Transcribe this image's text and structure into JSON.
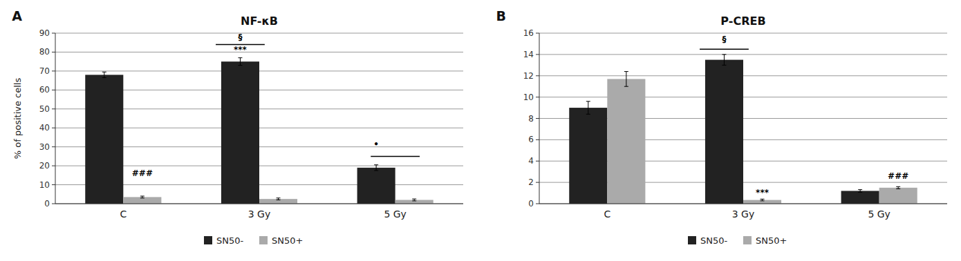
{
  "chart_data": [
    {
      "type": "bar",
      "title": "NF-κB",
      "panel_label": "A",
      "ylabel": "% of positive cells",
      "categories": [
        "C",
        "3 Gy",
        "5 Gy"
      ],
      "series": [
        {
          "name": "SN50-",
          "color": "#222222",
          "values": [
            68,
            75,
            19
          ],
          "errors": [
            1.5,
            2.0,
            1.5
          ]
        },
        {
          "name": "SN50+",
          "color": "#aaaaaa",
          "values": [
            3.5,
            2.5,
            2.0
          ],
          "errors": [
            0.5,
            0.5,
            0.5
          ]
        }
      ],
      "ylim": [
        0,
        90
      ],
      "yticks": [
        0,
        10,
        20,
        30,
        40,
        50,
        60,
        70,
        80,
        90
      ],
      "grid": true,
      "legend": "bottom",
      "annotations": [
        {
          "text": "###",
          "category": 0,
          "series": 1,
          "y": 14
        },
        {
          "text": "***",
          "category": 1,
          "series": 0,
          "y": 79
        },
        {
          "shape": "bracket",
          "category": 1,
          "series": 0,
          "y": 84
        },
        {
          "text": "§",
          "category": 1,
          "series": 0,
          "y": 85.5
        },
        {
          "text": "•",
          "category": 2,
          "series": 0,
          "y": 29
        },
        {
          "shape": "bracket",
          "category": 2,
          "y": 25
        }
      ]
    },
    {
      "type": "bar",
      "title": "P-CREB",
      "panel_label": "B",
      "categories": [
        "C",
        "3 Gy",
        "5 Gy"
      ],
      "series": [
        {
          "name": "SN50-",
          "color": "#222222",
          "values": [
            9.0,
            13.5,
            1.2
          ],
          "errors": [
            0.6,
            0.5,
            0.12
          ]
        },
        {
          "name": "SN50+",
          "color": "#aaaaaa",
          "values": [
            11.7,
            0.35,
            1.5
          ],
          "errors": [
            0.7,
            0.08,
            0.1
          ]
        }
      ],
      "ylim": [
        0,
        16
      ],
      "yticks": [
        0,
        2,
        4,
        6,
        8,
        10,
        12,
        14,
        16
      ],
      "grid": true,
      "legend": "bottom",
      "annotations": [
        {
          "text": "***",
          "category": 1,
          "series": 1,
          "y": 0.65
        },
        {
          "shape": "bracket",
          "category": 1,
          "series": 0,
          "y": 14.5
        },
        {
          "text": "§",
          "category": 1,
          "series": 0,
          "y": 15.0
        },
        {
          "text": "###",
          "category": 2,
          "series": 1,
          "y": 2.2
        }
      ]
    }
  ]
}
